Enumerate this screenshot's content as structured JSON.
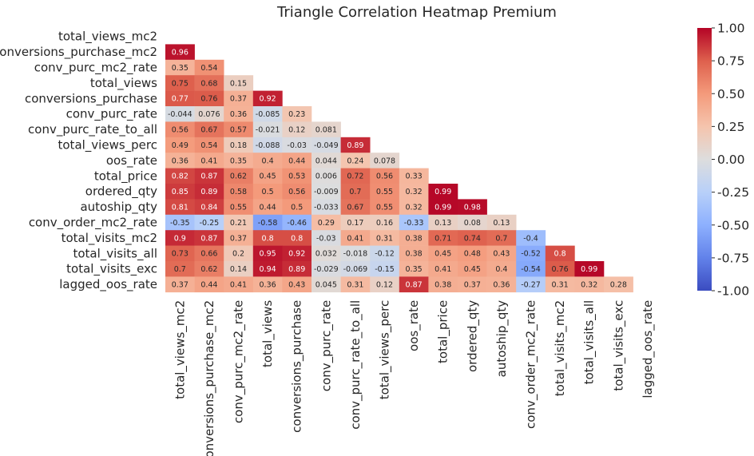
{
  "chart_data": {
    "type": "heatmap",
    "title": "Triangle Correlation Heatmap Premium",
    "mask": "upper-triangle",
    "colormap": "coolwarm",
    "colors": {
      "low": "#3b4cc0",
      "mid": "#dddddd",
      "high": "#b40426",
      "text_dark": "#262626",
      "text_light": "#ffffff"
    },
    "variables": [
      "total_views_mc2",
      "conversions_purchase_mc2",
      "conv_purc_mc2_rate",
      "total_views",
      "conversions_purchase",
      "conv_purc_rate",
      "conv_purc_rate_to_all",
      "total_views_perc",
      "oos_rate",
      "total_price",
      "ordered_qty",
      "autoship_qty",
      "conv_order_mc2_rate",
      "total_visits_mc2",
      "total_visits_all",
      "total_visits_exc",
      "lagged_oos_rate"
    ],
    "rows": [
      [],
      [
        "0.96"
      ],
      [
        "0.35",
        "0.54"
      ],
      [
        "0.75",
        "0.68",
        "0.15"
      ],
      [
        "0.77",
        "0.76",
        "0.37",
        "0.92"
      ],
      [
        "-0.044",
        "0.076",
        "0.36",
        "-0.085",
        "0.23"
      ],
      [
        "0.56",
        "0.67",
        "0.57",
        "-0.021",
        "0.12",
        "0.081"
      ],
      [
        "0.49",
        "0.54",
        "0.18",
        "-0.088",
        "-0.03",
        "-0.049",
        "0.89"
      ],
      [
        "0.36",
        "0.41",
        "0.35",
        "0.4",
        "0.44",
        "0.044",
        "0.24",
        "0.078"
      ],
      [
        "0.82",
        "0.87",
        "0.62",
        "0.45",
        "0.53",
        "0.006",
        "0.72",
        "0.56",
        "0.33"
      ],
      [
        "0.85",
        "0.89",
        "0.58",
        "0.5",
        "0.56",
        "-0.009",
        "0.7",
        "0.55",
        "0.32",
        "0.99"
      ],
      [
        "0.81",
        "0.84",
        "0.55",
        "0.44",
        "0.5",
        "-0.033",
        "0.67",
        "0.55",
        "0.32",
        "0.99",
        "0.98"
      ],
      [
        "-0.35",
        "-0.25",
        "0.21",
        "-0.58",
        "-0.46",
        "0.29",
        "0.17",
        "0.16",
        "-0.33",
        "0.13",
        "0.08",
        "0.13"
      ],
      [
        "0.9",
        "0.87",
        "0.37",
        "0.8",
        "0.8",
        "-0.03",
        "0.41",
        "0.31",
        "0.38",
        "0.71",
        "0.74",
        "0.7",
        "-0.4"
      ],
      [
        "0.73",
        "0.66",
        "0.2",
        "0.95",
        "0.92",
        "0.032",
        "-0.018",
        "-0.12",
        "0.38",
        "0.45",
        "0.48",
        "0.43",
        "-0.52",
        "0.8"
      ],
      [
        "0.7",
        "0.62",
        "0.14",
        "0.94",
        "0.89",
        "-0.029",
        "-0.069",
        "-0.15",
        "0.35",
        "0.41",
        "0.45",
        "0.4",
        "-0.54",
        "0.76",
        "0.99"
      ],
      [
        "0.37",
        "0.44",
        "0.41",
        "0.36",
        "0.43",
        "0.045",
        "0.31",
        "0.12",
        "0.87",
        "0.38",
        "0.37",
        "0.36",
        "-0.27",
        "0.31",
        "0.32",
        "0.28"
      ]
    ],
    "vmin": -1.0,
    "vmax": 1.0,
    "colorbar_ticks": [
      "1.00",
      "0.75",
      "0.50",
      "0.25",
      "0.00",
      "-0.25",
      "-0.50",
      "-0.75",
      "-1.00"
    ]
  }
}
